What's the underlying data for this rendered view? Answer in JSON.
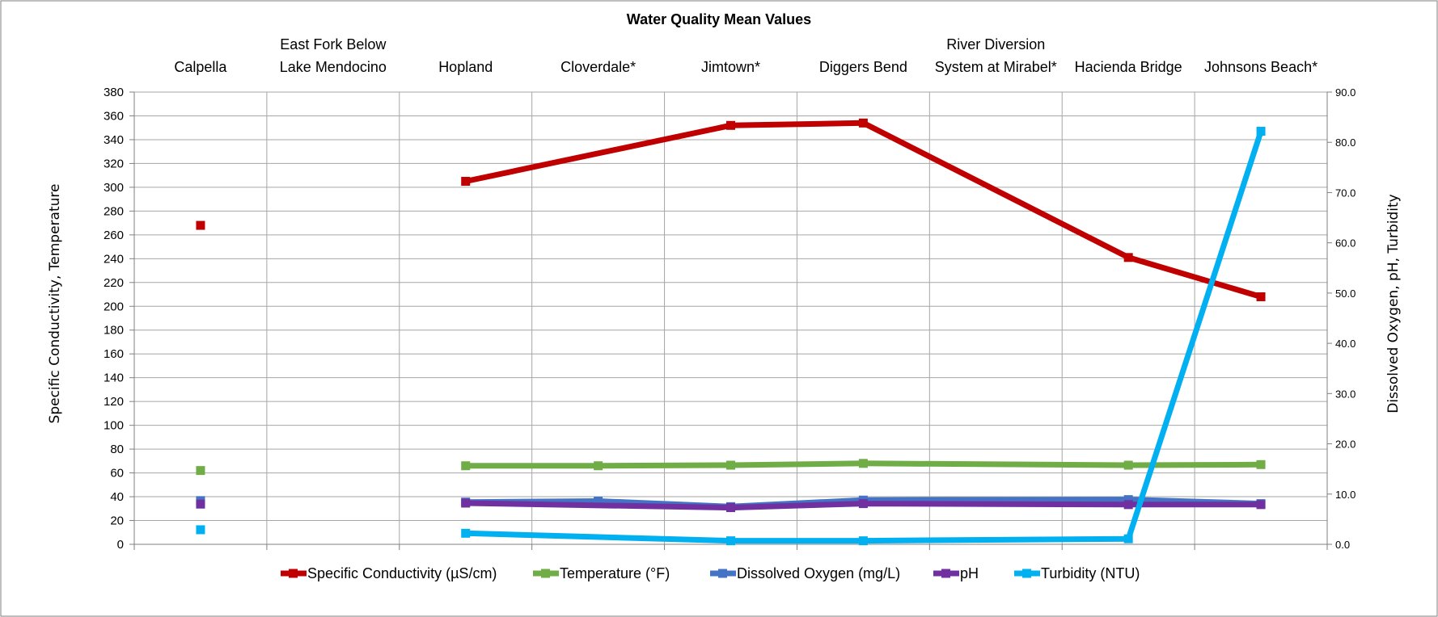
{
  "chart_data": {
    "type": "line",
    "title": "Water Quality Mean Values",
    "categories": [
      [
        "Calpella"
      ],
      [
        "East Fork Below",
        "Lake Mendocino"
      ],
      [
        "Hopland"
      ],
      [
        "Cloverdale*"
      ],
      [
        "Jimtown*"
      ],
      [
        "Diggers Bend"
      ],
      [
        "River Diversion",
        "System at Mirabel*"
      ],
      [
        "Hacienda Bridge"
      ],
      [
        "Johnsons Beach*"
      ]
    ],
    "ylabel_left": "Specific Conductivity,  Temperature",
    "ylabel_right": "Dissolved Oxygen, pH, Turbidity",
    "ylim_left": [
      0,
      380
    ],
    "ylim_right": [
      0,
      90
    ],
    "yticks_left": [
      "0",
      "20",
      "40",
      "60",
      "80",
      "100",
      "120",
      "140",
      "160",
      "180",
      "200",
      "220",
      "240",
      "260",
      "280",
      "300",
      "320",
      "340",
      "360",
      "380"
    ],
    "yticks_right": [
      "0.0",
      "10.0",
      "20.0",
      "30.0",
      "40.0",
      "50.0",
      "60.0",
      "70.0",
      "80.0",
      "90.0"
    ],
    "grid": true,
    "legend_position": "bottom",
    "series": [
      {
        "name": "Specific Conductivity (µS/cm)",
        "axis": "left",
        "color": "#C00000",
        "values": [
          268,
          null,
          305,
          null,
          352,
          354,
          null,
          241,
          208
        ]
      },
      {
        "name": "Temperature  (°F)",
        "axis": "left",
        "color": "#70AD47",
        "values": [
          62,
          null,
          66,
          66,
          66.5,
          68,
          null,
          66.5,
          67
        ]
      },
      {
        "name": "Dissolved Oxygen (mg/L)",
        "axis": "right",
        "color": "#4472C4",
        "values": [
          8.7,
          null,
          8.4,
          8.6,
          7.5,
          8.8,
          null,
          8.9,
          8.1
        ]
      },
      {
        "name": "pH",
        "axis": "right",
        "color": "#7030A0",
        "values": [
          8.0,
          null,
          8.2,
          null,
          7.3,
          8.1,
          null,
          7.9,
          7.9
        ]
      },
      {
        "name": "Turbidity (NTU)",
        "axis": "right",
        "color": "#00B0F0",
        "values": [
          2.9,
          null,
          2.2,
          null,
          0.7,
          0.7,
          null,
          1.1,
          82.2
        ]
      }
    ]
  }
}
